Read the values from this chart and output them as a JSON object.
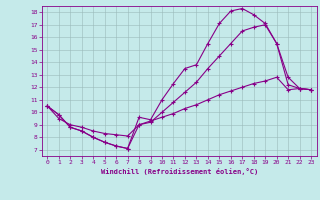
{
  "xlabel": "Windchill (Refroidissement éolien,°C)",
  "bg_color": "#c5eaea",
  "line_color": "#880088",
  "grid_color": "#9ababa",
  "xlim": [
    -0.5,
    23.5
  ],
  "ylim": [
    6.5,
    18.5
  ],
  "xticks": [
    0,
    1,
    2,
    3,
    4,
    5,
    6,
    7,
    8,
    9,
    10,
    11,
    12,
    13,
    14,
    15,
    16,
    17,
    18,
    19,
    20,
    21,
    22,
    23
  ],
  "yticks": [
    7,
    8,
    9,
    10,
    11,
    12,
    13,
    14,
    15,
    16,
    17,
    18
  ],
  "line1_x": [
    0,
    1,
    2,
    3,
    4,
    5,
    6,
    7,
    8,
    9,
    10,
    11,
    12,
    13,
    14,
    15,
    16,
    17,
    18,
    19,
    20,
    21,
    22,
    23
  ],
  "line1_y": [
    10.5,
    9.8,
    8.8,
    8.5,
    8.0,
    7.6,
    7.3,
    7.1,
    9.6,
    9.4,
    11.0,
    12.3,
    13.5,
    13.8,
    15.5,
    17.1,
    18.1,
    18.3,
    17.8,
    17.1,
    15.5,
    12.2,
    11.9,
    11.8
  ],
  "line2_x": [
    0,
    1,
    2,
    3,
    4,
    5,
    6,
    7,
    8,
    9,
    10,
    11,
    12,
    13,
    14,
    15,
    16,
    17,
    18,
    19,
    20,
    21,
    22,
    23
  ],
  "line2_y": [
    10.5,
    9.8,
    8.8,
    8.5,
    8.0,
    7.6,
    7.3,
    7.1,
    9.0,
    9.2,
    10.0,
    10.8,
    11.6,
    12.4,
    13.5,
    14.5,
    15.5,
    16.5,
    16.8,
    17.0,
    15.5,
    12.8,
    11.9,
    11.8
  ],
  "line3_x": [
    0,
    1,
    2,
    3,
    4,
    5,
    6,
    7,
    8,
    9,
    10,
    11,
    12,
    13,
    14,
    15,
    16,
    17,
    18,
    19,
    20,
    21,
    22,
    23
  ],
  "line3_y": [
    10.5,
    9.5,
    9.0,
    8.8,
    8.5,
    8.3,
    8.2,
    8.1,
    9.0,
    9.3,
    9.6,
    9.9,
    10.3,
    10.6,
    11.0,
    11.4,
    11.7,
    12.0,
    12.3,
    12.5,
    12.8,
    11.8,
    11.9,
    11.8
  ]
}
